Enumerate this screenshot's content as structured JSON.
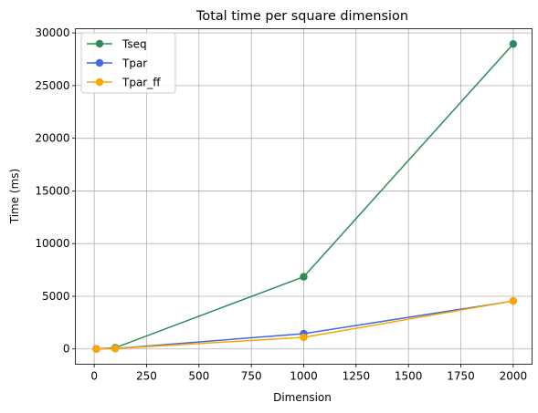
{
  "chart_data": {
    "type": "line",
    "title": "Total time per square dimension",
    "xlabel": "Dimension",
    "ylabel": "Time (ms)",
    "xlim": [
      -90,
      2090
    ],
    "ylim": [
      -1450,
      30400
    ],
    "xticks": [
      0,
      250,
      500,
      750,
      1000,
      1250,
      1500,
      1750,
      2000
    ],
    "yticks": [
      0,
      5000,
      10000,
      15000,
      20000,
      25000,
      30000
    ],
    "grid": true,
    "legend_position": "top-left",
    "x": [
      10,
      100,
      1000,
      2000
    ],
    "series": [
      {
        "name": "Tseq",
        "color": "#2e8b57",
        "marker": "circle",
        "values": [
          5,
          110,
          6850,
          28950
        ]
      },
      {
        "name": "Tpar",
        "color": "#4169e1",
        "marker": "circle",
        "values": [
          5,
          40,
          1450,
          4550
        ]
      },
      {
        "name": "Tpar_ff",
        "color": "#ffa500",
        "marker": "circle",
        "values": [
          5,
          35,
          1100,
          4550
        ]
      }
    ]
  }
}
